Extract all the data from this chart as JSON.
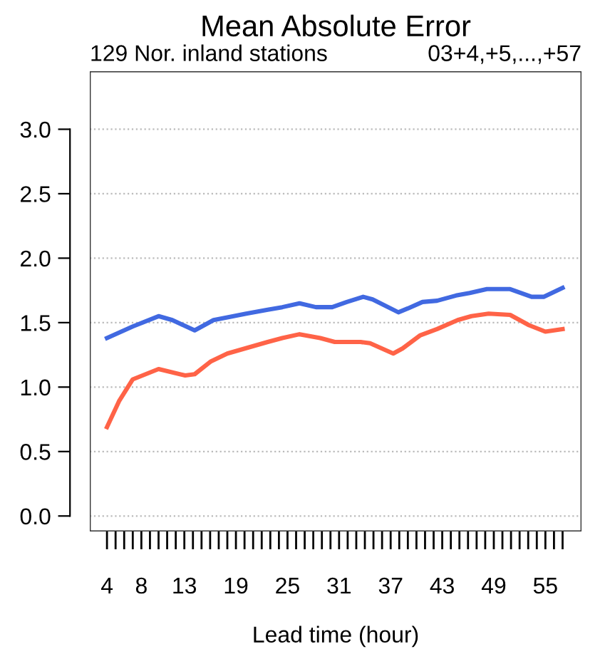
{
  "chart_data": {
    "type": "line",
    "title": "Mean Absolute Error",
    "subtitle": "129 Nor. inland stations",
    "annotations": [
      "03+4,+5,...,+57"
    ],
    "xlabel": "Lead time (hour)",
    "xlim": [
      2,
      59.2
    ],
    "ylim": [
      -0.12,
      3.45
    ],
    "xticks": [
      {
        "value": 4,
        "label": "4"
      },
      {
        "value": 5,
        "label": null
      },
      {
        "value": 6,
        "label": null
      },
      {
        "value": 7,
        "label": null
      },
      {
        "value": 8,
        "label": "8"
      },
      {
        "value": 9,
        "label": null
      },
      {
        "value": 10,
        "label": null
      },
      {
        "value": 11,
        "label": null
      },
      {
        "value": 12,
        "label": null
      },
      {
        "value": 13,
        "label": "13"
      },
      {
        "value": 14,
        "label": null
      },
      {
        "value": 15,
        "label": null
      },
      {
        "value": 16,
        "label": null
      },
      {
        "value": 17,
        "label": null
      },
      {
        "value": 18,
        "label": null
      },
      {
        "value": 19,
        "label": "19"
      },
      {
        "value": 20,
        "label": null
      },
      {
        "value": 21,
        "label": null
      },
      {
        "value": 22,
        "label": null
      },
      {
        "value": 23,
        "label": null
      },
      {
        "value": 24,
        "label": null
      },
      {
        "value": 25,
        "label": "25"
      },
      {
        "value": 26,
        "label": null
      },
      {
        "value": 27,
        "label": null
      },
      {
        "value": 28,
        "label": null
      },
      {
        "value": 29,
        "label": null
      },
      {
        "value": 30,
        "label": null
      },
      {
        "value": 31,
        "label": "31"
      },
      {
        "value": 32,
        "label": null
      },
      {
        "value": 33,
        "label": null
      },
      {
        "value": 34,
        "label": null
      },
      {
        "value": 35,
        "label": null
      },
      {
        "value": 36,
        "label": null
      },
      {
        "value": 37,
        "label": "37"
      },
      {
        "value": 38,
        "label": null
      },
      {
        "value": 39,
        "label": null
      },
      {
        "value": 40,
        "label": null
      },
      {
        "value": 41,
        "label": null
      },
      {
        "value": 42,
        "label": null
      },
      {
        "value": 43,
        "label": "43"
      },
      {
        "value": 44,
        "label": null
      },
      {
        "value": 45,
        "label": null
      },
      {
        "value": 46,
        "label": null
      },
      {
        "value": 47,
        "label": null
      },
      {
        "value": 48,
        "label": null
      },
      {
        "value": 49,
        "label": "49"
      },
      {
        "value": 50,
        "label": null
      },
      {
        "value": 51,
        "label": null
      },
      {
        "value": 52,
        "label": null
      },
      {
        "value": 53,
        "label": null
      },
      {
        "value": 54,
        "label": null
      },
      {
        "value": 55,
        "label": "55"
      },
      {
        "value": 56,
        "label": null
      },
      {
        "value": 57,
        "label": null
      }
    ],
    "yticks": [
      {
        "value": 0,
        "label": "0.0"
      },
      {
        "value": 0.5,
        "label": "0.5"
      },
      {
        "value": 1,
        "label": "1.0"
      },
      {
        "value": 1.5,
        "label": "1.5"
      },
      {
        "value": 2,
        "label": "2.0"
      },
      {
        "value": 2.5,
        "label": "2.5"
      },
      {
        "value": 3,
        "label": "3.0"
      }
    ],
    "grid": "y",
    "legend": false,
    "marker": "none",
    "line_style": "solid",
    "series": [
      {
        "color": "#4169e1",
        "x": [
          4,
          7,
          10,
          11.6,
          14.2,
          16.4,
          18,
          20.2,
          22.7,
          24.4,
          26.4,
          28.3,
          30.2,
          31.9,
          33.8,
          34.9,
          37.9,
          39,
          40.7,
          42.4,
          44.6,
          46.2,
          48.2,
          50.9,
          53.4,
          54.8,
          57
        ],
        "values": [
          1.38,
          1.47,
          1.55,
          1.52,
          1.44,
          1.52,
          1.54,
          1.57,
          1.6,
          1.62,
          1.65,
          1.62,
          1.62,
          1.66,
          1.7,
          1.68,
          1.58,
          1.61,
          1.66,
          1.67,
          1.71,
          1.73,
          1.76,
          1.76,
          1.7,
          1.7,
          1.77
        ]
      },
      {
        "color": "#ff6347",
        "x": [
          4,
          5.4,
          7,
          10,
          13.1,
          14.2,
          16.1,
          18,
          20.6,
          22.7,
          24.4,
          26.4,
          28.8,
          30.5,
          33.5,
          34.6,
          37.3,
          38.4,
          40.4,
          42.4,
          44.8,
          46.4,
          48.4,
          50.9,
          53.1,
          55,
          57
        ],
        "values": [
          0.69,
          0.89,
          1.06,
          1.14,
          1.09,
          1.1,
          1.2,
          1.26,
          1.31,
          1.35,
          1.38,
          1.41,
          1.38,
          1.35,
          1.35,
          1.34,
          1.26,
          1.3,
          1.4,
          1.45,
          1.52,
          1.55,
          1.57,
          1.56,
          1.48,
          1.43,
          1.45
        ]
      }
    ]
  }
}
